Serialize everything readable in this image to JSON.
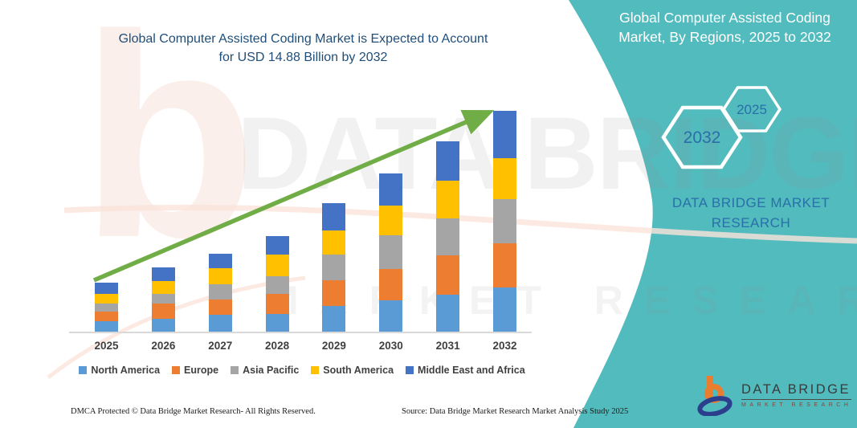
{
  "title": {
    "line1": "Global Computer Assisted Coding Market is Expected to Account",
    "line2": "for USD 14.88 Billion by 2032"
  },
  "side_panel": {
    "heading_line1": "Global Computer Assisted Coding",
    "heading_line2": "Market, By Regions, 2025 to 2032",
    "hexagons": [
      {
        "label": "2032"
      },
      {
        "label": "2025"
      }
    ],
    "brand_line1": "DATA BRIDGE MARKET",
    "brand_line2": "RESEARCH",
    "background_color": "#52BBBE"
  },
  "watermark": {
    "glyph": "b",
    "line1": "DATA BRIDGE",
    "line2": "MARKET RESEARCH"
  },
  "chart_data": {
    "type": "bar",
    "stacked": true,
    "unit": "USD Billion",
    "title": "Global Computer Assisted Coding Market, By Regions, 2025 to 2032",
    "categories": [
      "2025",
      "2026",
      "2027",
      "2028",
      "2029",
      "2030",
      "2031",
      "2032"
    ],
    "series": [
      {
        "name": "North America",
        "color": "#5B9BD5",
        "values": [
          0.72,
          0.85,
          1.13,
          1.2,
          1.75,
          2.11,
          2.49,
          2.99
        ]
      },
      {
        "name": "Europe",
        "color": "#ED7D31",
        "values": [
          0.65,
          1.03,
          1.03,
          1.35,
          1.71,
          2.11,
          2.62,
          2.95
        ]
      },
      {
        "name": "Asia Pacific",
        "color": "#A5A5A5",
        "values": [
          0.54,
          0.65,
          1.03,
          1.17,
          1.71,
          2.25,
          2.52,
          2.99
        ]
      },
      {
        "name": "South America",
        "color": "#FFC000",
        "values": [
          0.62,
          0.9,
          1.08,
          1.49,
          1.62,
          2.02,
          2.52,
          2.77
        ]
      },
      {
        "name": "Middle East and Africa",
        "color": "#4472C4",
        "values": [
          0.76,
          0.9,
          1.0,
          1.21,
          1.86,
          2.16,
          2.65,
          3.17
        ]
      }
    ],
    "estimated_totals_usd_billion": [
      3.29,
      4.33,
      5.27,
      6.42,
      8.65,
      10.65,
      12.8,
      14.87
    ],
    "highlight_value": "USD 14.88 Billion by 2032",
    "trend_arrow_color": "#70AD47",
    "axis": {
      "y_axis_visible": false,
      "gridlines": false,
      "baseline_color": "#D9D9D9"
    },
    "legend_position": "bottom"
  },
  "footer": {
    "left": "DMCA Protected © Data Bridge Market Research- All Rights Reserved.",
    "right": "Source: Data Bridge Market Research Market Analysis Study 2025"
  },
  "logo": {
    "name": "DATA BRIDGE",
    "subtitle": "MARKET RESEARCH"
  },
  "colors": {
    "title_text": "#1F4E79",
    "teal_background": "#52BBBE",
    "hexagon_year_text": "#2a6fa8",
    "axis_label_text": "#404040",
    "arrow_green": "#70AD47",
    "logo_orange": "#E87E2E",
    "logo_blue": "#2B3F8C"
  }
}
